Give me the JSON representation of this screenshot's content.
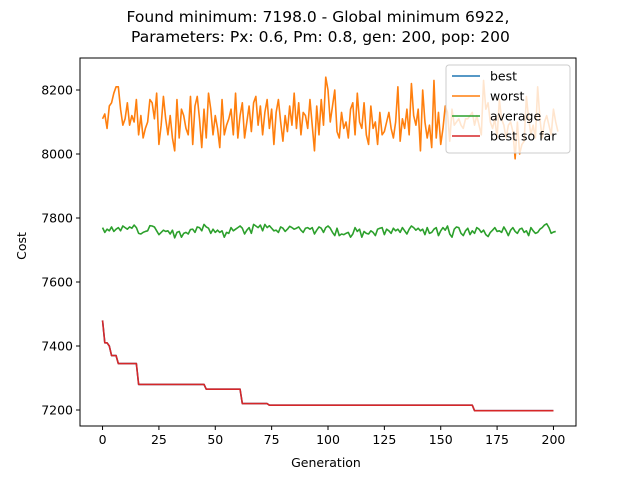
{
  "chart_data": {
    "type": "line",
    "title_lines": [
      "Found minimum: 7198.0 - Global minimum 6922,",
      " Parameters: Px: 0.6, Pm: 0.8, gen: 200, pop: 200"
    ],
    "xlabel": "Generation",
    "ylabel": "Cost",
    "xlim": [
      -10,
      210
    ],
    "ylim": [
      7150,
      8300
    ],
    "xticks": [
      0,
      25,
      50,
      75,
      100,
      125,
      150,
      175,
      200
    ],
    "yticks": [
      7200,
      7400,
      7600,
      7800,
      8000,
      8200
    ],
    "grid": false,
    "legend_position": "top-right",
    "series": [
      {
        "name": "best",
        "color": "#1f77b4",
        "step_points": [
          [
            0,
            7480
          ],
          [
            1,
            7410
          ],
          [
            3,
            7400
          ],
          [
            4,
            7370
          ],
          [
            7,
            7345
          ],
          [
            15,
            7345
          ],
          [
            16,
            7280
          ],
          [
            45,
            7280
          ],
          [
            46,
            7265
          ],
          [
            61,
            7265
          ],
          [
            62,
            7220
          ],
          [
            73,
            7220
          ],
          [
            74,
            7215
          ],
          [
            164,
            7215
          ],
          [
            165,
            7198
          ],
          [
            200,
            7198
          ]
        ]
      },
      {
        "name": "worst",
        "color": "#ff7f0e",
        "values": [
          8110,
          8125,
          8080,
          8150,
          8160,
          8190,
          8210,
          8210,
          8140,
          8090,
          8110,
          8160,
          8090,
          8120,
          8100,
          8170,
          8060,
          8120,
          8050,
          8080,
          8100,
          8170,
          8160,
          8110,
          8190,
          8030,
          8090,
          8180,
          8110,
          8060,
          8120,
          8050,
          8010,
          8170,
          8050,
          8140,
          8120,
          8080,
          8060,
          8180,
          8030,
          8150,
          8180,
          8110,
          8020,
          8140,
          8050,
          8190,
          8140,
          8060,
          8120,
          8080,
          8020,
          8170,
          8060,
          8090,
          8110,
          8140,
          8060,
          8190,
          8050,
          8120,
          8160,
          8050,
          8100,
          8150,
          8070,
          8160,
          8180,
          8090,
          8150,
          8060,
          8130,
          8170,
          8080,
          8140,
          8030,
          8130,
          8170,
          8100,
          8040,
          8120,
          8070,
          8150,
          8090,
          8190,
          8080,
          8160,
          8060,
          8130,
          8120,
          8080,
          8170,
          8090,
          8010,
          8150,
          8060,
          8170,
          8090,
          8240,
          8200,
          8100,
          8150,
          8200,
          8070,
          8050,
          8130,
          8080,
          8100,
          8050,
          8140,
          8160,
          8060,
          8190,
          8100,
          8080,
          8160,
          8060,
          8030,
          8150,
          8080,
          8100,
          8030,
          8130,
          8060,
          8070,
          8100,
          8130,
          8080,
          8050,
          8100,
          8210,
          8040,
          8110,
          8080,
          8140,
          8060,
          8220,
          8120,
          8090,
          8140,
          8010,
          8200,
          8100,
          8050,
          8090,
          8020,
          8230,
          8050,
          8130,
          8030,
          8080,
          8150,
          8130,
          8040,
          8140,
          8090,
          8100,
          8110,
          8090,
          8080,
          8110,
          8110,
          8120,
          8130,
          8090,
          8120,
          8090,
          8060,
          8230,
          8140,
          8160,
          8100,
          8080,
          8110,
          8050,
          8170,
          8110,
          8090,
          8050,
          8090,
          8100,
          8070,
          7985,
          8100,
          8000,
          8030,
          8040,
          8180,
          8110,
          8060,
          8090,
          8050,
          8210,
          8110,
          8050,
          8100,
          8120,
          8090,
          8060,
          8140,
          8100,
          8070
        ]
      },
      {
        "name": "average",
        "color": "#2ca02c",
        "values": [
          7770,
          7755,
          7765,
          7760,
          7772,
          7758,
          7765,
          7770,
          7760,
          7775,
          7770,
          7765,
          7772,
          7768,
          7778,
          7770,
          7752,
          7750,
          7755,
          7758,
          7760,
          7776,
          7775,
          7772,
          7760,
          7748,
          7755,
          7762,
          7758,
          7760,
          7750,
          7762,
          7738,
          7755,
          7758,
          7740,
          7752,
          7755,
          7750,
          7764,
          7765,
          7755,
          7772,
          7770,
          7760,
          7780,
          7772,
          7768,
          7752,
          7765,
          7755,
          7762,
          7755,
          7760,
          7740,
          7755,
          7752,
          7770,
          7760,
          7765,
          7770,
          7775,
          7768,
          7750,
          7762,
          7770,
          7752,
          7780,
          7775,
          7770,
          7778,
          7760,
          7780,
          7770,
          7776,
          7768,
          7760,
          7762,
          7755,
          7772,
          7768,
          7758,
          7765,
          7774,
          7770,
          7765,
          7768,
          7772,
          7762,
          7755,
          7768,
          7770,
          7765,
          7770,
          7750,
          7762,
          7772,
          7768,
          7755,
          7770,
          7775,
          7768,
          7755,
          7745,
          7768,
          7745,
          7750,
          7748,
          7752,
          7755,
          7740,
          7750,
          7770,
          7758,
          7765,
          7740,
          7758,
          7752,
          7750,
          7760,
          7755,
          7745,
          7765,
          7768,
          7770,
          7748,
          7765,
          7760,
          7752,
          7768,
          7760,
          7765,
          7755,
          7770,
          7760,
          7750,
          7765,
          7775,
          7770,
          7762,
          7768,
          7760,
          7765,
          7748,
          7770,
          7752,
          7755,
          7765,
          7770,
          7745,
          7760,
          7770,
          7762,
          7775,
          7750,
          7740,
          7765,
          7772,
          7770,
          7752,
          7745,
          7760,
          7768,
          7748,
          7760,
          7752,
          7770,
          7765,
          7755,
          7762,
          7748,
          7742,
          7755,
          7762,
          7770,
          7758,
          7760,
          7755,
          7772,
          7760,
          7745,
          7762,
          7770,
          7758,
          7752,
          7765,
          7768,
          7755,
          7760,
          7745,
          7770,
          7760,
          7752,
          7755,
          7765,
          7770,
          7778,
          7782,
          7770,
          7752,
          7756,
          7758
        ]
      },
      {
        "name": "best so far",
        "color": "#d62728",
        "step_points": [
          [
            0,
            7480
          ],
          [
            1,
            7410
          ],
          [
            3,
            7400
          ],
          [
            4,
            7370
          ],
          [
            7,
            7345
          ],
          [
            15,
            7345
          ],
          [
            16,
            7280
          ],
          [
            45,
            7280
          ],
          [
            46,
            7265
          ],
          [
            61,
            7265
          ],
          [
            62,
            7220
          ],
          [
            73,
            7220
          ],
          [
            74,
            7215
          ],
          [
            164,
            7215
          ],
          [
            165,
            7198
          ],
          [
            200,
            7198
          ]
        ]
      }
    ]
  }
}
